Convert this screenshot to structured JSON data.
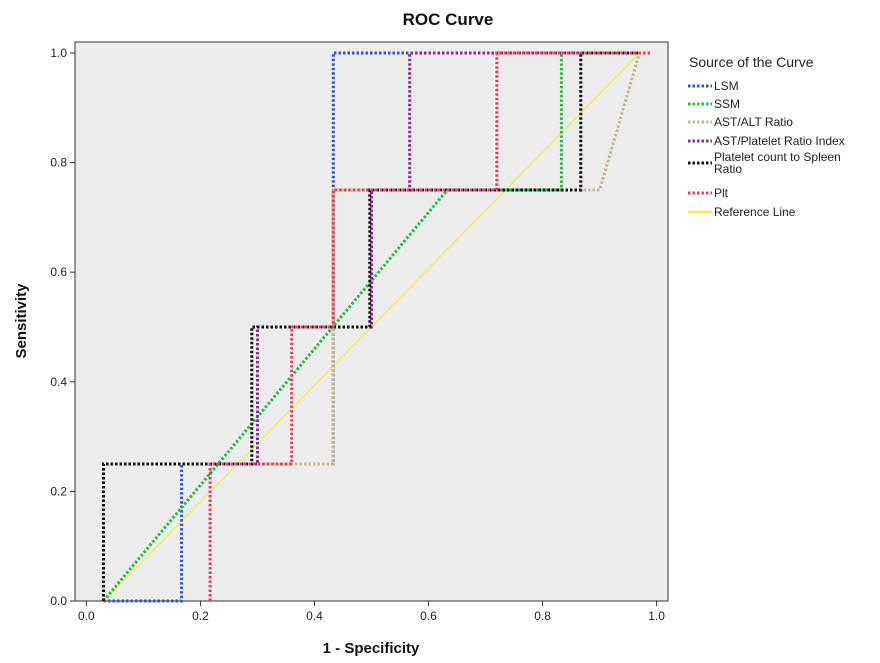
{
  "chart_data": {
    "type": "line",
    "title": "ROC Curve",
    "xlabel": "1 - Specificity",
    "ylabel": "Sensitivity",
    "xlim": [
      -0.02,
      1.02
    ],
    "ylim": [
      0.0,
      1.02
    ],
    "xticks": [
      "0.0",
      "0.2",
      "0.4",
      "0.6",
      "0.8",
      "1.0"
    ],
    "yticks": [
      "0.0",
      "0.2",
      "0.4",
      "0.6",
      "0.8",
      "1.0"
    ],
    "xtick_values": [
      0.0,
      0.2,
      0.4,
      0.6,
      0.8,
      1.0
    ],
    "ytick_values": [
      0.0,
      0.2,
      0.4,
      0.6,
      0.8,
      1.0
    ],
    "grid": false,
    "plot_background": "#ececec",
    "legend": {
      "title": "Source of the Curve",
      "position": "right"
    },
    "series": [
      {
        "name": "LSM",
        "color": "#3355bb",
        "style": "dotted",
        "points": [
          [
            0.03,
            0.0
          ],
          [
            0.167,
            0.0
          ],
          [
            0.167,
            0.25
          ],
          [
            0.433,
            0.25
          ],
          [
            0.433,
            1.0
          ],
          [
            0.97,
            1.0
          ]
        ]
      },
      {
        "name": "SSM",
        "color": "#22bb44",
        "style": "dotted",
        "points": [
          [
            0.03,
            0.0
          ],
          [
            0.633,
            0.75
          ],
          [
            0.833,
            0.75
          ],
          [
            0.833,
            1.0
          ],
          [
            0.97,
            1.0
          ]
        ]
      },
      {
        "name": "AST/ALT Ratio",
        "color": "#c8b88a",
        "style": "dotted",
        "points": [
          [
            0.03,
            0.0
          ],
          [
            0.03,
            0.25
          ],
          [
            0.433,
            0.25
          ],
          [
            0.433,
            0.75
          ],
          [
            0.9,
            0.75
          ],
          [
            0.97,
            1.0
          ]
        ]
      },
      {
        "name": "AST/Platelet Ratio Index",
        "color": "#8a2a8a",
        "style": "dotted",
        "points": [
          [
            0.03,
            0.0
          ],
          [
            0.03,
            0.25
          ],
          [
            0.3,
            0.25
          ],
          [
            0.3,
            0.5
          ],
          [
            0.5,
            0.5
          ],
          [
            0.5,
            0.75
          ],
          [
            0.567,
            0.75
          ],
          [
            0.567,
            1.0
          ],
          [
            0.97,
            1.0
          ]
        ]
      },
      {
        "name": "Platelet count to Spleen Ratio",
        "color": "#111111",
        "style": "dotted",
        "points": [
          [
            0.03,
            0.0
          ],
          [
            0.03,
            0.25
          ],
          [
            0.29,
            0.25
          ],
          [
            0.29,
            0.5
          ],
          [
            0.497,
            0.5
          ],
          [
            0.497,
            0.75
          ],
          [
            0.867,
            0.75
          ],
          [
            0.867,
            1.0
          ],
          [
            0.97,
            1.0
          ]
        ]
      },
      {
        "name": "Plt",
        "color": "#e04060",
        "style": "dotted",
        "points": [
          [
            0.217,
            0.0
          ],
          [
            0.217,
            0.25
          ],
          [
            0.36,
            0.25
          ],
          [
            0.36,
            0.5
          ],
          [
            0.433,
            0.5
          ],
          [
            0.433,
            0.75
          ],
          [
            0.72,
            0.75
          ],
          [
            0.72,
            1.0
          ],
          [
            0.99,
            1.0
          ]
        ]
      },
      {
        "name": "Reference Line",
        "color": "#f2ea6a",
        "style": "solid",
        "points": [
          [
            0.03,
            0.0
          ],
          [
            0.97,
            1.0
          ]
        ]
      }
    ]
  }
}
